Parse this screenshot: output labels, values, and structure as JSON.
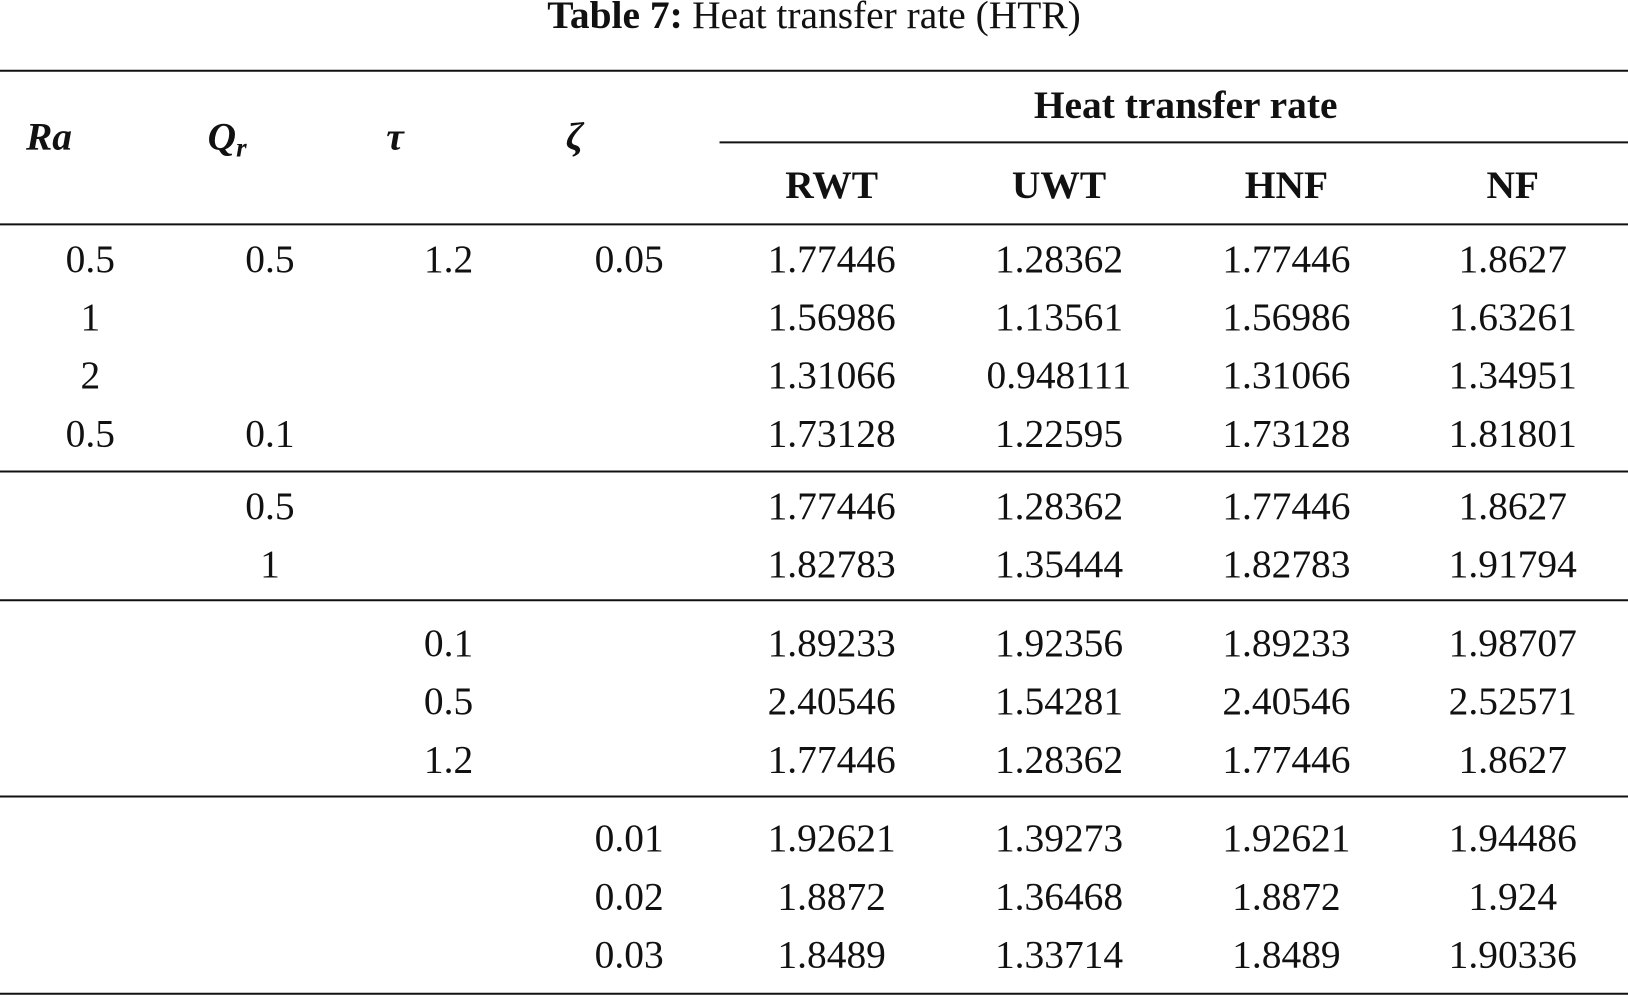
{
  "caption": {
    "label": "Table 7:",
    "text": "Heat transfer rate (HTR)"
  },
  "table": {
    "header": {
      "ra": "Ra",
      "qr": {
        "main": "Q",
        "sub": "r"
      },
      "tau": "τ",
      "zeta": "ζ",
      "group": "Heat transfer rate",
      "columns": [
        "RWT",
        "UWT",
        "HNF",
        "NF"
      ]
    },
    "rows": [
      [
        "0.5",
        "0.5",
        "1.2",
        "0.05",
        "1.77446",
        "1.28362",
        "1.77446",
        "1.8627"
      ],
      [
        "1",
        null,
        null,
        null,
        "1.56986",
        "1.13561",
        "1.56986",
        "1.63261"
      ],
      [
        "2",
        null,
        null,
        null,
        "1.31066",
        "0.948111",
        "1.31066",
        "1.34951"
      ],
      [
        "0.5",
        "0.1",
        null,
        null,
        "1.73128",
        "1.22595",
        "1.73128",
        "1.81801"
      ],
      [
        null,
        "0.5",
        null,
        null,
        "1.77446",
        "1.28362",
        "1.77446",
        "1.8627"
      ],
      [
        null,
        "1",
        null,
        null,
        "1.82783",
        "1.35444",
        "1.82783",
        "1.91794"
      ],
      [
        null,
        null,
        "0.1",
        null,
        "1.89233",
        "1.92356",
        "1.89233",
        "1.98707"
      ],
      [
        null,
        null,
        "0.5",
        null,
        "2.40546",
        "1.54281",
        "2.40546",
        "2.52571"
      ],
      [
        null,
        null,
        "1.2",
        null,
        "1.77446",
        "1.28362",
        "1.77446",
        "1.8627"
      ],
      [
        null,
        null,
        null,
        "0.01",
        "1.92621",
        "1.39273",
        "1.92621",
        "1.94486"
      ],
      [
        null,
        null,
        null,
        "0.02",
        "1.8872",
        "1.36468",
        "1.8872",
        "1.924"
      ],
      [
        null,
        null,
        null,
        "0.03",
        "1.8489",
        "1.33714",
        "1.8489",
        "1.90336"
      ]
    ]
  }
}
